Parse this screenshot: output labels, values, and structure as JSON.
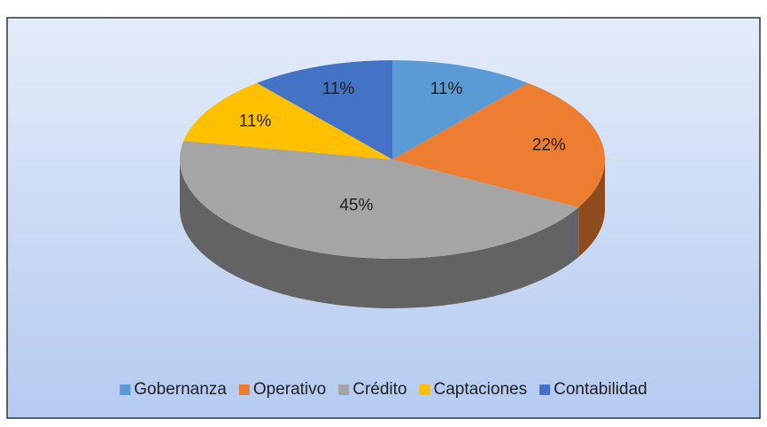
{
  "chart_data": {
    "type": "pie",
    "categories": [
      "Gobernanza",
      "Operativo",
      "Crédito",
      "Captaciones",
      "Contabilidad"
    ],
    "values": [
      11,
      22,
      45,
      11,
      11
    ],
    "value_labels": [
      "11%",
      "22%",
      "45%",
      "11%",
      "11%"
    ],
    "colors": [
      "#5b9bd5",
      "#ed7d31",
      "#a5a5a5",
      "#ffc000",
      "#4472c4"
    ],
    "legend": "bottom"
  }
}
